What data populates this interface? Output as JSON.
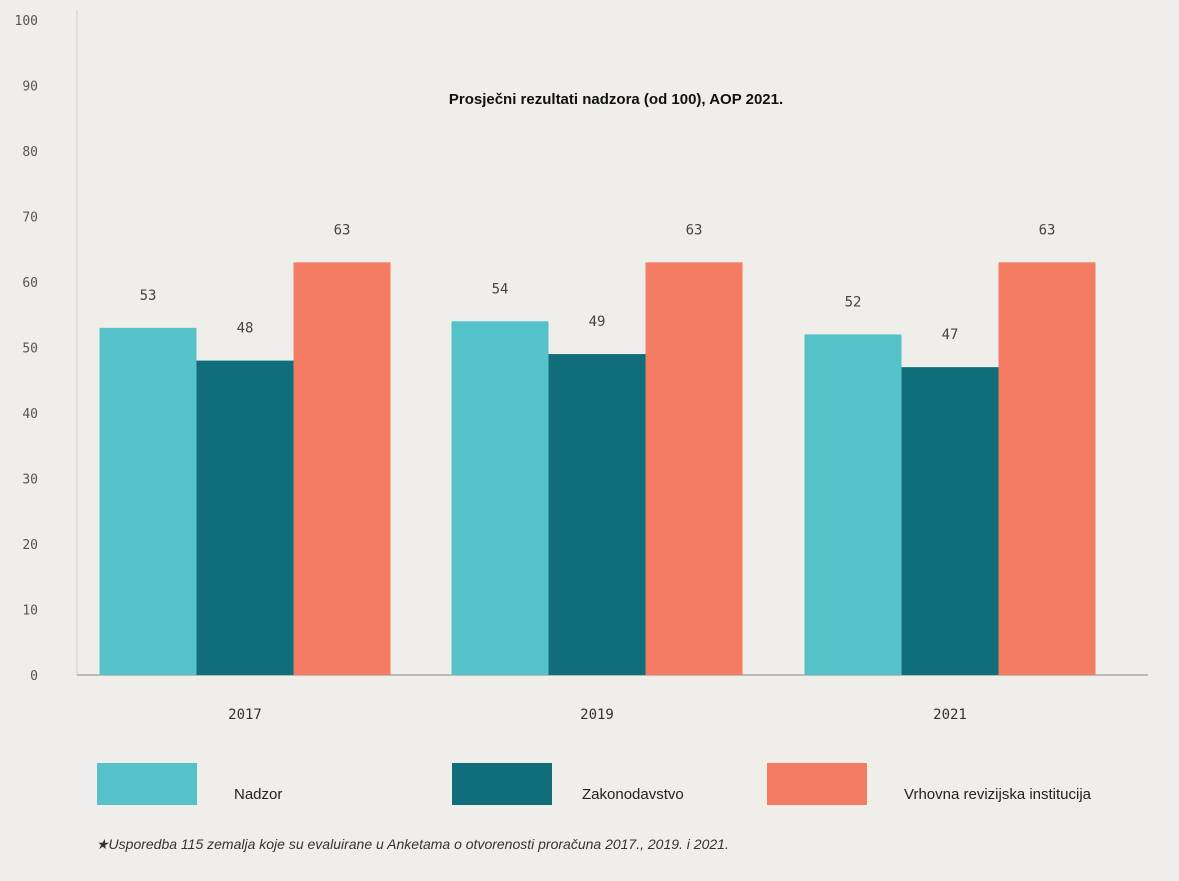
{
  "chart_data": {
    "type": "bar",
    "title": "Prosječni rezultati nadzora (od 100), AOP 2021.",
    "categories": [
      "2017",
      "2019",
      "2021"
    ],
    "series": [
      {
        "name": "Nadzor",
        "values": [
          53,
          54,
          52
        ],
        "color": "#55c2c9"
      },
      {
        "name": "Zakonodavstvo",
        "values": [
          48,
          49,
          47
        ],
        "color": "#106e7b"
      },
      {
        "name": "Vrhovna revizijska institucija",
        "values": [
          63,
          63,
          63
        ],
        "color": "#f37c63"
      }
    ],
    "yticks": [
      "0",
      "10",
      "20",
      "30",
      "40",
      "50",
      "60",
      "70",
      "80",
      "90",
      "100"
    ],
    "ylim": [
      0,
      100
    ],
    "grid": false,
    "legend": "bottom"
  },
  "footnote": "★Usporedba 115 zemalja koje su evaluirane u Anketama o otvorenosti proračuna 2017., 2019. i 2021."
}
